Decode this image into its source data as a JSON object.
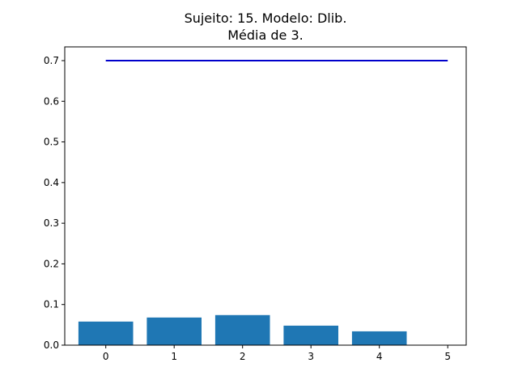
{
  "chart_data": {
    "type": "bar",
    "title_line1": "Sujeito: 15. Modelo: Dlib.",
    "title_line2": "Média de 3.",
    "xlabel": "",
    "ylabel": "",
    "categories": [
      0,
      1,
      2,
      3,
      4
    ],
    "values": [
      0.058,
      0.068,
      0.074,
      0.048,
      0.034
    ],
    "threshold_line": {
      "x": [
        0,
        5
      ],
      "y": [
        0.7,
        0.7
      ]
    },
    "x_ticks": [
      "0",
      "1",
      "2",
      "3",
      "4",
      "5"
    ],
    "y_ticks": [
      "0.0",
      "0.1",
      "0.2",
      "0.3",
      "0.4",
      "0.5",
      "0.6",
      "0.7"
    ],
    "xlim": [
      -0.6,
      5.27
    ],
    "ylim": [
      0,
      0.7
    ],
    "grid": false,
    "bar_color": "#1f77b4",
    "line_color": "#0000cc"
  }
}
